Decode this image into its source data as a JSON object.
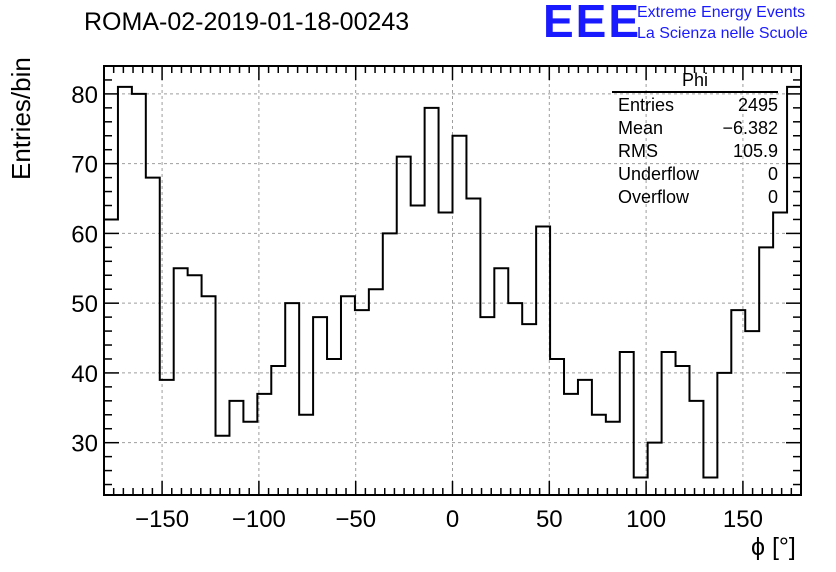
{
  "page": {
    "title": "ROMA-02-2019-01-18-00243"
  },
  "logo": {
    "mark": "EEE",
    "line1": "Extreme Energy Events",
    "line2": "La Scienza nelle Scuole"
  },
  "stats": {
    "title": "Phi",
    "rows": [
      {
        "label": "Entries",
        "value": "2495"
      },
      {
        "label": "Mean",
        "value": "−6.382"
      },
      {
        "label": "RMS",
        "value": "105.9"
      },
      {
        "label": "Underflow",
        "value": "0"
      },
      {
        "label": "Overflow",
        "value": "0"
      }
    ]
  },
  "colors": {
    "line": "#000000",
    "grid": "#9e9e9e",
    "logo": "#1a1aff"
  },
  "chart_data": {
    "type": "bar",
    "style": "step-histogram",
    "title": "ROMA-02-2019-01-18-00243",
    "xlabel": "ϕ [°]",
    "ylabel": "Entries/bin",
    "xlim": [
      -180,
      180
    ],
    "ylim": [
      22.5,
      84
    ],
    "xticks": [
      -150,
      -100,
      -50,
      0,
      50,
      100,
      150
    ],
    "yticks": [
      30,
      40,
      50,
      60,
      70,
      80
    ],
    "grid": true,
    "bin_edges_start": -180,
    "bin_width": 7.2,
    "values": [
      62,
      81,
      80,
      68,
      39,
      55,
      54,
      51,
      31,
      36,
      33,
      37,
      41,
      50,
      34,
      48,
      42,
      51,
      49,
      52,
      60,
      71,
      64,
      78,
      63,
      74,
      65,
      48,
      55,
      50,
      47,
      61,
      42,
      37,
      39,
      34,
      33,
      43,
      25,
      30,
      43,
      41,
      36,
      25,
      40,
      49,
      46,
      58,
      63,
      81
    ]
  }
}
